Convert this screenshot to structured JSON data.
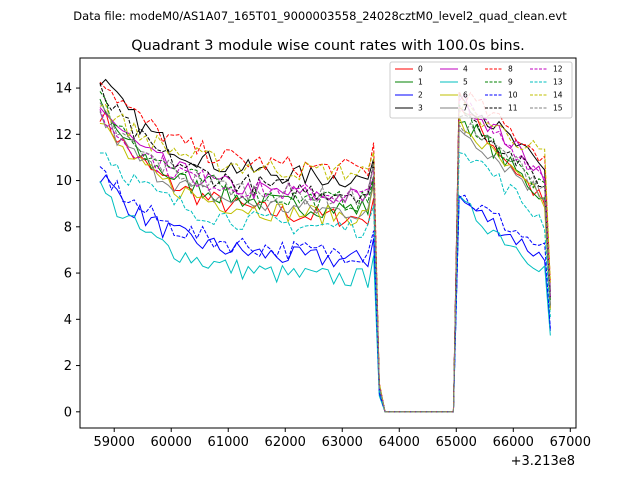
{
  "suptitle": "Data file: modeM0/AS1A07_165T01_9000003558_24028cztM0_level2_quad_clean.evt",
  "chart_data": {
    "type": "line",
    "title": "Quadrant 3 module wise count rates with 100.0s bins.",
    "xlabel": "",
    "ylabel": "",
    "offset_text": "+3.213e8",
    "xlim": [
      58400,
      67100
    ],
    "ylim": [
      -0.7,
      15.3
    ],
    "xticks": [
      59000,
      60000,
      61000,
      62000,
      63000,
      64000,
      65000,
      66000,
      67000
    ],
    "xtick_labels": [
      "59000",
      "60000",
      "61000",
      "62000",
      "63000",
      "64000",
      "65000",
      "66000",
      "67000"
    ],
    "yticks": [
      0,
      2,
      4,
      6,
      8,
      10,
      12,
      14
    ],
    "ytick_labels": [
      "0",
      "2",
      "4",
      "6",
      "8",
      "10",
      "12",
      "14"
    ],
    "legend_position": "upper-right",
    "legend_columns": 4,
    "seg1": {
      "t_start": 58750,
      "t_end": 63550,
      "step": 100
    },
    "gap": {
      "t_drop": 63650,
      "t_start": 63750,
      "t_end": 64950
    },
    "seg2": {
      "t_start": 65050,
      "t_end": 66550,
      "step": 100,
      "t_last": 66650
    },
    "series": [
      {
        "name": "0",
        "color": "#ff0000",
        "dash": "solid",
        "start": 13.0,
        "plateau": 8.3,
        "peak": 13.3,
        "end2": 9.0,
        "last": 4.5
      },
      {
        "name": "1",
        "color": "#008000",
        "dash": "solid",
        "start": 13.2,
        "plateau": 8.7,
        "peak": 12.8,
        "end2": 9.2,
        "last": 4.6
      },
      {
        "name": "2",
        "color": "#0000ff",
        "dash": "solid",
        "start": 10.3,
        "plateau": 6.5,
        "peak": 9.2,
        "end2": 6.6,
        "last": 3.5
      },
      {
        "name": "3",
        "color": "#000000",
        "dash": "solid",
        "start": 14.5,
        "plateau": 10.0,
        "peak": 13.8,
        "end2": 10.4,
        "last": 5.2
      },
      {
        "name": "4",
        "color": "#bf00bf",
        "dash": "solid",
        "start": 13.3,
        "plateau": 9.2,
        "peak": 13.6,
        "end2": 10.3,
        "last": 5.0
      },
      {
        "name": "5",
        "color": "#00bfbf",
        "dash": "solid",
        "start": 9.7,
        "plateau": 5.7,
        "peak": 9.0,
        "end2": 6.2,
        "last": 3.3
      },
      {
        "name": "6",
        "color": "#bfbf00",
        "dash": "solid",
        "start": 12.5,
        "plateau": 8.4,
        "peak": 12.5,
        "end2": 9.0,
        "last": 4.4
      },
      {
        "name": "7",
        "color": "#808080",
        "dash": "solid",
        "start": 12.8,
        "plateau": 8.6,
        "peak": 12.3,
        "end2": 9.3,
        "last": 4.6
      },
      {
        "name": "8",
        "color": "#ff0000",
        "dash": "dashed",
        "start": 14.6,
        "plateau": 10.4,
        "peak": 13.9,
        "end2": 11.0,
        "last": 5.6
      },
      {
        "name": "9",
        "color": "#008000",
        "dash": "dashed",
        "start": 13.6,
        "plateau": 9.0,
        "peak": 13.0,
        "end2": 9.5,
        "last": 4.8
      },
      {
        "name": "10",
        "color": "#0000ff",
        "dash": "dashed",
        "start": 10.5,
        "plateau": 6.8,
        "peak": 9.4,
        "end2": 7.0,
        "last": 3.6
      },
      {
        "name": "11",
        "color": "#000000",
        "dash": "dashed",
        "start": 13.9,
        "plateau": 9.4,
        "peak": 13.1,
        "end2": 9.8,
        "last": 4.9
      },
      {
        "name": "12",
        "color": "#bf00bf",
        "dash": "dashed",
        "start": 12.9,
        "plateau": 9.3,
        "peak": 13.4,
        "end2": 10.2,
        "last": 5.0
      },
      {
        "name": "13",
        "color": "#00bfbf",
        "dash": "dashed",
        "start": 11.5,
        "plateau": 7.9,
        "peak": 11.6,
        "end2": 8.2,
        "last": 4.1
      },
      {
        "name": "14",
        "color": "#bfbf00",
        "dash": "dashed",
        "start": 13.4,
        "plateau": 10.3,
        "peak": 13.2,
        "end2": 11.1,
        "last": 5.6
      },
      {
        "name": "15",
        "color": "#808080",
        "dash": "dashed",
        "start": 13.0,
        "plateau": 9.2,
        "peak": 12.6,
        "end2": 9.8,
        "last": 4.9
      }
    ]
  }
}
